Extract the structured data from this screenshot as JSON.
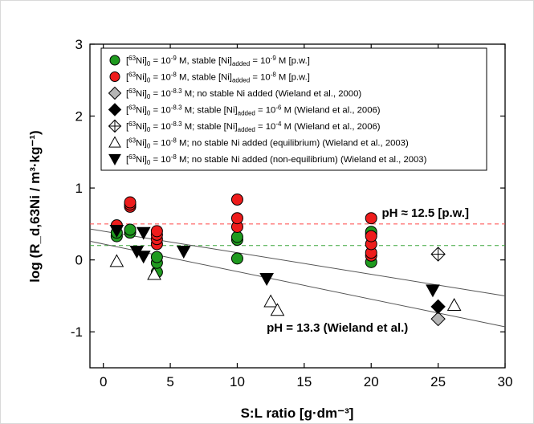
{
  "chart_data": {
    "type": "scatter",
    "xlabel": "S:L ratio [g·dm⁻³]",
    "ylabel": "log (R_d,63Ni / m³·kg⁻¹)",
    "xlim": [
      -1,
      30
    ],
    "ylim": [
      -1.5,
      3
    ],
    "xticks": [
      0,
      5,
      10,
      15,
      20,
      25,
      30
    ],
    "yticks": [
      -1,
      0,
      1,
      2,
      3
    ],
    "grid": false,
    "legend_position": "top",
    "series": [
      {
        "name": "[63Ni]0 = 10-9 M, stable [Ni]added = 10-9 M [p.w.]",
        "marker": "circle",
        "color": "#1f9a1f",
        "points": [
          [
            1.0,
            0.33
          ],
          [
            1.0,
            0.38
          ],
          [
            2.0,
            0.38
          ],
          [
            2.0,
            0.42
          ],
          [
            4.0,
            -0.17
          ],
          [
            4.0,
            -0.04
          ],
          [
            4.0,
            0.04
          ],
          [
            10.0,
            0.02
          ],
          [
            10.0,
            0.28
          ],
          [
            10.0,
            0.32
          ],
          [
            20.0,
            -0.03
          ],
          [
            20.0,
            0.36
          ],
          [
            20.0,
            0.39
          ]
        ]
      },
      {
        "name": "[63Ni]0 = 10-8 M, stable [Ni]added = 10-8 M [p.w.]",
        "marker": "circle",
        "color": "#ee1c1c",
        "points": [
          [
            1.0,
            0.48
          ],
          [
            2.0,
            0.74
          ],
          [
            2.0,
            0.77
          ],
          [
            2.0,
            0.8
          ],
          [
            4.0,
            0.22
          ],
          [
            4.0,
            0.29
          ],
          [
            4.0,
            0.35
          ],
          [
            4.0,
            0.4
          ],
          [
            10.0,
            0.46
          ],
          [
            10.0,
            0.58
          ],
          [
            10.0,
            0.84
          ],
          [
            20.0,
            0.06
          ],
          [
            20.0,
            0.1
          ],
          [
            20.0,
            0.22
          ],
          [
            20.0,
            0.33
          ],
          [
            20.0,
            0.58
          ]
        ]
      },
      {
        "name": "[63Ni]0 = 10-8.3 M; no stable Ni added (Wieland et al., 2000)",
        "marker": "diamond",
        "color": "#b5b5b5",
        "points": [
          [
            25.0,
            -0.82
          ]
        ]
      },
      {
        "name": "[63Ni]0 = 10-8.3 M; stable [Ni]added = 10-6 M (Wieland et al., 2006)",
        "marker": "diamond",
        "color": "#000000",
        "points": [
          [
            25.0,
            -0.65
          ]
        ]
      },
      {
        "name": "[63Ni]0 = 10-8.3 M; stable [Ni]added = 10-4 M (Wieland et al., 2006)",
        "marker": "diamond-cross",
        "color": "#ffffff",
        "points": [
          [
            25.0,
            0.08
          ]
        ]
      },
      {
        "name": "[63Ni]0 = 10-8 M; no stable Ni added (equilibrium) (Wieland et al., 2003)",
        "marker": "triangle-up",
        "color": "#ffffff",
        "points": [
          [
            1.0,
            -0.02
          ],
          [
            3.8,
            -0.2
          ],
          [
            12.5,
            -0.58
          ],
          [
            13.0,
            -0.7
          ],
          [
            26.2,
            -0.63
          ]
        ]
      },
      {
        "name": "[63Ni]0 = 10-8 M; no stable Ni added (non-equilibrium) (Wieland et al., 2003)",
        "marker": "triangle-down",
        "color": "#000000",
        "points": [
          [
            1.0,
            0.41
          ],
          [
            2.5,
            0.12
          ],
          [
            3.0,
            0.05
          ],
          [
            3.0,
            0.38
          ],
          [
            6.0,
            0.12
          ],
          [
            12.2,
            -0.26
          ],
          [
            24.6,
            -0.42
          ]
        ]
      }
    ],
    "reference_lines": [
      {
        "type": "hline",
        "y": 0.5,
        "color": "#ff4a4a",
        "style": "dashed"
      },
      {
        "type": "hline",
        "y": 0.2,
        "color": "#3aa53a",
        "style": "dashed"
      },
      {
        "type": "line",
        "from": [
          -1,
          0.43
        ],
        "to": [
          30,
          -0.5
        ],
        "color": "#555555"
      },
      {
        "type": "line",
        "from": [
          -1,
          0.26
        ],
        "to": [
          30,
          -0.93
        ],
        "color": "#555555"
      }
    ],
    "annotations": [
      {
        "text": "pH ≈ 12.5 [p.w.]",
        "x": 27.3,
        "y": 0.6,
        "anchor": "end"
      },
      {
        "text": "pH = 13.3 (Wieland et al.)",
        "x": 12.2,
        "y": -1.0,
        "anchor": "start"
      }
    ]
  },
  "legend_rich": [
    [
      [
        "[",
        "n"
      ],
      [
        "63",
        "sup"
      ],
      [
        "Ni]",
        "n"
      ],
      [
        "0",
        "sub"
      ],
      [
        " = 10",
        "n"
      ],
      [
        "-9",
        "sup"
      ],
      [
        " M, stable [Ni]",
        "n"
      ],
      [
        "added",
        "sub"
      ],
      [
        " = 10",
        "n"
      ],
      [
        "-9",
        "sup"
      ],
      [
        " M [p.w.]",
        "n"
      ]
    ],
    [
      [
        "[",
        "n"
      ],
      [
        "63",
        "sup"
      ],
      [
        "Ni]",
        "n"
      ],
      [
        "0",
        "sub"
      ],
      [
        " = 10",
        "n"
      ],
      [
        "-8",
        "sup"
      ],
      [
        " M, stable [Ni]",
        "n"
      ],
      [
        "added",
        "sub"
      ],
      [
        " = 10",
        "n"
      ],
      [
        "-8",
        "sup"
      ],
      [
        " M [p.w.]",
        "n"
      ]
    ],
    [
      [
        "[",
        "n"
      ],
      [
        "63",
        "sup"
      ],
      [
        "Ni]",
        "n"
      ],
      [
        "0",
        "sub"
      ],
      [
        " = 10",
        "n"
      ],
      [
        "-8.3",
        "sup"
      ],
      [
        " M; no stable Ni added (Wieland et al., 2000)",
        "n"
      ]
    ],
    [
      [
        "[",
        "n"
      ],
      [
        "63",
        "sup"
      ],
      [
        "Ni]",
        "n"
      ],
      [
        "0",
        "sub"
      ],
      [
        " = 10",
        "n"
      ],
      [
        "-8.3",
        "sup"
      ],
      [
        " M; stable [Ni]",
        "n"
      ],
      [
        "added",
        "sub"
      ],
      [
        " = 10",
        "n"
      ],
      [
        "-6",
        "sup"
      ],
      [
        " M (Wieland et al., 2006)",
        "n"
      ]
    ],
    [
      [
        "[",
        "n"
      ],
      [
        "63",
        "sup"
      ],
      [
        "Ni]",
        "n"
      ],
      [
        "0",
        "sub"
      ],
      [
        " = 10",
        "n"
      ],
      [
        "-8.3",
        "sup"
      ],
      [
        " M; stable [Ni]",
        "n"
      ],
      [
        "added",
        "sub"
      ],
      [
        " = 10",
        "n"
      ],
      [
        "-4",
        "sup"
      ],
      [
        " M (Wieland et al., 2006)",
        "n"
      ]
    ],
    [
      [
        "[",
        "n"
      ],
      [
        "63",
        "sup"
      ],
      [
        "Ni]",
        "n"
      ],
      [
        "0",
        "sub"
      ],
      [
        " = 10",
        "n"
      ],
      [
        "-8",
        "sup"
      ],
      [
        " M; no stable Ni added (equilibrium) (Wieland et al., 2003)",
        "n"
      ]
    ],
    [
      [
        "[",
        "n"
      ],
      [
        "63",
        "sup"
      ],
      [
        "Ni]",
        "n"
      ],
      [
        "0",
        "sub"
      ],
      [
        " = 10",
        "n"
      ],
      [
        "-8",
        "sup"
      ],
      [
        " M; no stable Ni added (non-equilibrium) (Wieland et al., 2003)",
        "n"
      ]
    ]
  ]
}
